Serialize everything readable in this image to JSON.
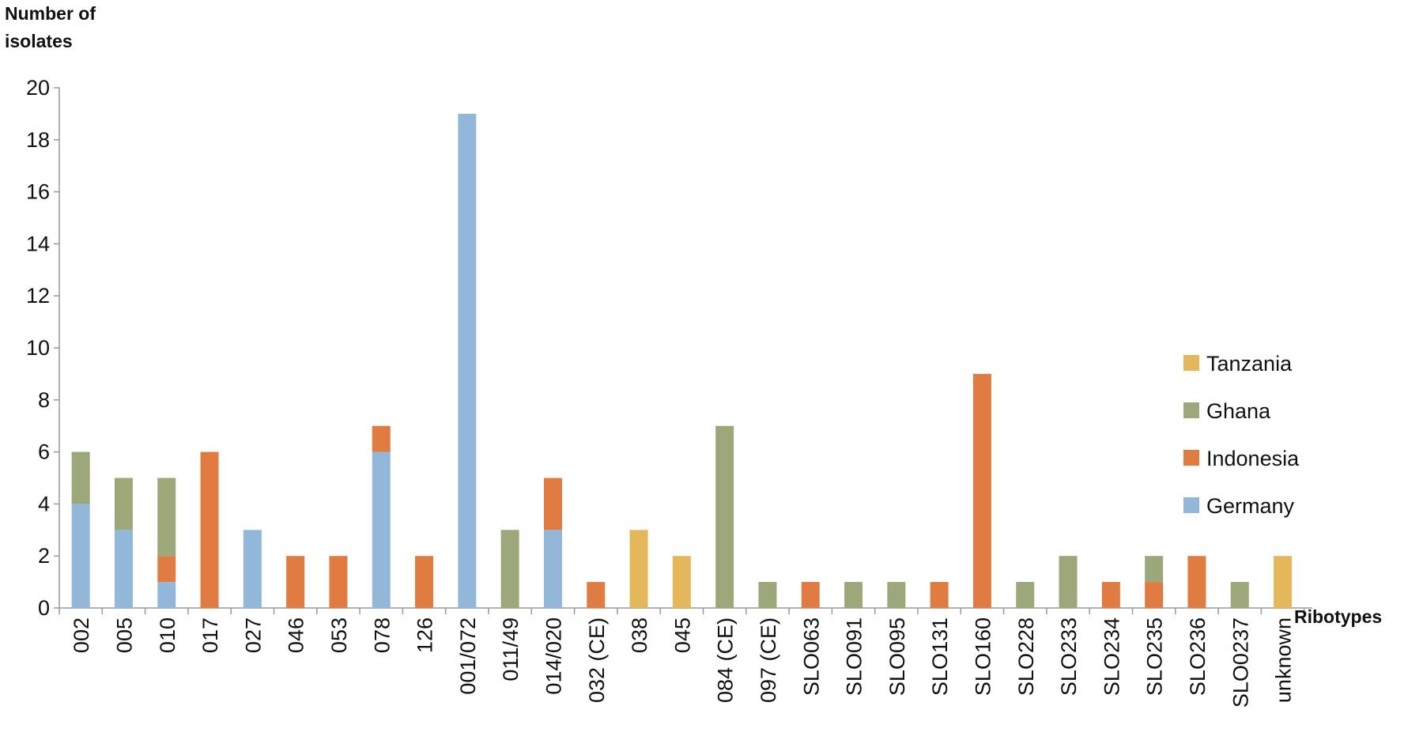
{
  "chart_data": {
    "type": "stacked-bar",
    "y_label": "Number of isolates",
    "x_label": "Ribotypes",
    "categories": [
      "002",
      "005",
      "010",
      "017",
      "027",
      "046",
      "053",
      "078",
      "126",
      "001/072",
      "011/49",
      "014/020",
      "032 (CE)",
      "038",
      "045",
      "084 (CE)",
      "097 (CE)",
      "SLO063",
      "SLO091",
      "SLO095",
      "SLO131",
      "SLO160",
      "SLO228",
      "SLO233",
      "SLO234",
      "SLO235",
      "SLO236",
      "SLO0237",
      "unknown"
    ],
    "series": [
      {
        "name": "Germany",
        "color": "#93b7d9",
        "values": [
          4,
          3,
          1,
          0,
          3,
          0,
          0,
          6,
          0,
          19,
          0,
          3,
          0,
          0,
          0,
          0,
          0,
          0,
          0,
          0,
          0,
          0,
          0,
          0,
          0,
          0,
          0,
          0,
          0
        ]
      },
      {
        "name": "Indonesia",
        "color": "#e07b42",
        "values": [
          0,
          0,
          1,
          6,
          0,
          2,
          2,
          1,
          2,
          0,
          0,
          2,
          1,
          0,
          0,
          0,
          0,
          1,
          0,
          0,
          1,
          9,
          0,
          0,
          1,
          1,
          2,
          0,
          0
        ]
      },
      {
        "name": "Ghana",
        "color": "#9ca77a",
        "values": [
          2,
          2,
          3,
          0,
          0,
          0,
          0,
          0,
          0,
          0,
          3,
          0,
          0,
          0,
          0,
          7,
          1,
          0,
          1,
          1,
          0,
          0,
          1,
          2,
          0,
          1,
          0,
          1,
          0
        ]
      },
      {
        "name": "Tanzania",
        "color": "#e3b75a",
        "values": [
          0,
          0,
          0,
          0,
          0,
          0,
          0,
          0,
          0,
          0,
          0,
          0,
          0,
          3,
          2,
          0,
          0,
          0,
          0,
          0,
          0,
          0,
          0,
          0,
          0,
          0,
          0,
          0,
          2
        ]
      }
    ],
    "ylim": [
      0,
      20
    ],
    "yticks": [
      0,
      2,
      4,
      6,
      8,
      10,
      12,
      14,
      16,
      18,
      20
    ],
    "grid": false,
    "legend": "right"
  }
}
